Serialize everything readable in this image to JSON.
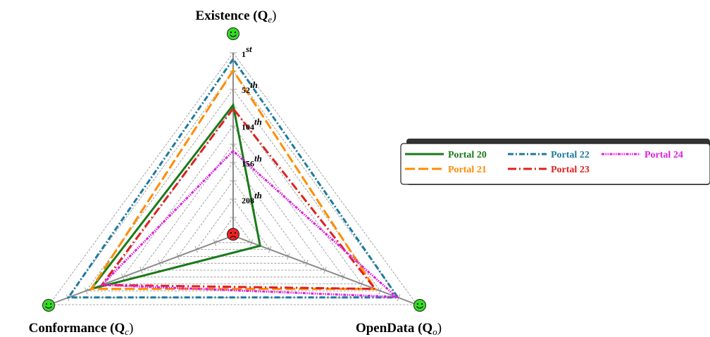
{
  "chart_data": {
    "type": "radar",
    "axes": [
      {
        "id": "existence",
        "name": "Existence (Q",
        "sub": "e",
        "close": ")"
      },
      {
        "id": "conformance",
        "name": "Conformance (Q",
        "sub": "c",
        "close": ")"
      },
      {
        "id": "opendata",
        "name": "OpenData (Q",
        "sub": "o",
        "close": ")"
      }
    ],
    "rank_range": [
      1,
      260
    ],
    "rank_direction": "best rank at outer edge (green smiley), worst at center (red frowny)",
    "ticks": [
      {
        "value": 1,
        "label": "1",
        "suffix": "st"
      },
      {
        "value": 52,
        "label": "52",
        "suffix": "th"
      },
      {
        "value": 104,
        "label": "104",
        "suffix": "th"
      },
      {
        "value": 156,
        "label": "156",
        "suffix": "th"
      },
      {
        "value": 208,
        "label": "208",
        "suffix": "th"
      }
    ],
    "grid": true,
    "legend_position": "right",
    "series": [
      {
        "name": "Portal 20",
        "color": "#1a7a1a",
        "dash": "solid",
        "values": {
          "existence": 75,
          "conformance": 60,
          "opendata": 222
        }
      },
      {
        "name": "Portal 21",
        "color": "#ff8c00",
        "dash": "long-dash",
        "values": {
          "existence": 26,
          "conformance": 60,
          "opendata": 60
        }
      },
      {
        "name": "Portal 22",
        "color": "#1e7a9e",
        "dash": "dash-dot",
        "values": {
          "existence": 10,
          "conformance": 28,
          "opendata": 28
        }
      },
      {
        "name": "Portal 23",
        "color": "#e02020",
        "dash": "dash-dot-red",
        "values": {
          "existence": 80,
          "conformance": 75,
          "opendata": 60
        }
      },
      {
        "name": "Portal 24",
        "color": "#e020e0",
        "dash": "dash-dot-dot",
        "values": {
          "existence": 140,
          "conformance": 75,
          "opendata": 30
        }
      }
    ]
  }
}
